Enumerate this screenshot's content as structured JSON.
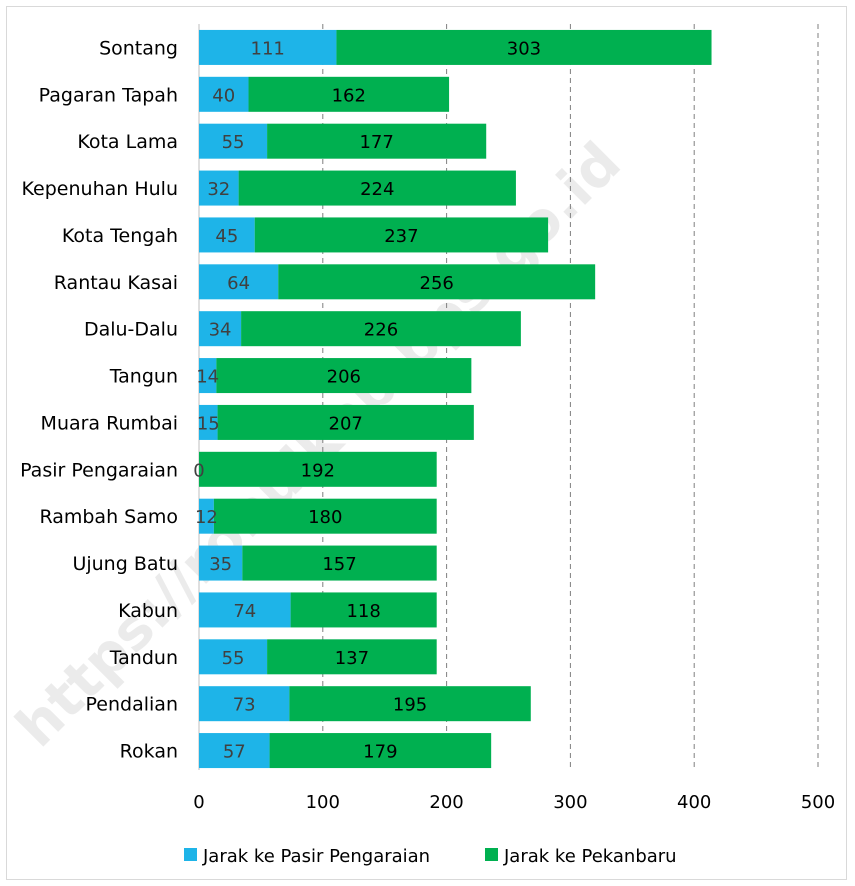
{
  "watermark": "https://rohulkab.bps.go.id",
  "colors": {
    "series1": "#1EB4E8",
    "series2": "#00B050",
    "series1_label": "#404040",
    "series2_label": "#000000",
    "grid": "#7f7f7f"
  },
  "chart_data": {
    "type": "bar",
    "orientation": "horizontal",
    "stacked": true,
    "categories": [
      "Sontang",
      "Pagaran Tapah",
      "Kota Lama",
      "Kepenuhan Hulu",
      "Kota Tengah",
      "Rantau Kasai",
      "Dalu-Dalu",
      "Tangun",
      "Muara Rumbai",
      "Pasir Pengaraian",
      "Rambah Samo",
      "Ujung Batu",
      "Kabun",
      "Tandun",
      "Pendalian",
      "Rokan"
    ],
    "series": [
      {
        "name": "Jarak ke Pasir Pengaraian",
        "values": [
          111,
          40,
          55,
          32,
          45,
          64,
          34,
          14,
          15,
          0,
          12,
          35,
          74,
          55,
          73,
          57
        ]
      },
      {
        "name": "Jarak ke Pekanbaru",
        "values": [
          303,
          162,
          177,
          224,
          237,
          256,
          226,
          206,
          207,
          192,
          180,
          157,
          118,
          137,
          195,
          179
        ]
      }
    ],
    "xlim": [
      0,
      500
    ],
    "xticks": [
      "0",
      "100",
      "200",
      "300",
      "400",
      "500"
    ],
    "grid": "vertical dashed",
    "legend_position": "bottom"
  }
}
